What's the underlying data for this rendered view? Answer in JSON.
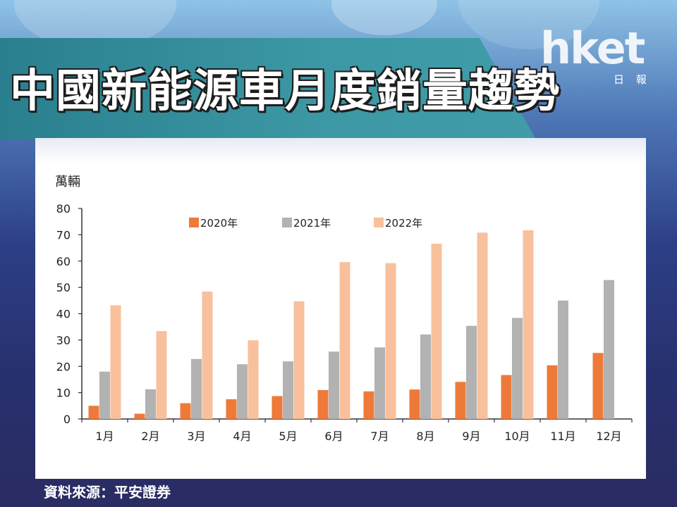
{
  "page_title": "中國新能源車月度銷量趨勢",
  "logo": {
    "wordmark": "hket",
    "subtitle": "日 報"
  },
  "source_note": "資料來源：平安證券",
  "chart_data": {
    "type": "bar",
    "ylabel": "萬輛",
    "ylim": [
      0,
      80
    ],
    "yticks": [
      0,
      10,
      20,
      30,
      40,
      50,
      60,
      70,
      80
    ],
    "categories": [
      "1月",
      "2月",
      "3月",
      "4月",
      "5月",
      "6月",
      "7月",
      "8月",
      "9月",
      "10月",
      "11月",
      "12月"
    ],
    "series": [
      {
        "name": "2020年",
        "color": "#ee7a3a",
        "values": [
          5,
          2,
          6,
          7.5,
          8.7,
          11,
          10.5,
          11.2,
          14.1,
          16.7,
          20.4,
          25.1
        ]
      },
      {
        "name": "2021年",
        "color": "#b2b2b2",
        "values": [
          18,
          11.3,
          22.8,
          20.8,
          21.9,
          25.6,
          27.2,
          32.1,
          35.4,
          38.4,
          45,
          52.8
        ]
      },
      {
        "name": "2022年",
        "color": "#f8c09c",
        "values": [
          43.2,
          33.4,
          48.4,
          29.9,
          44.7,
          59.6,
          59.2,
          66.6,
          70.8,
          71.7,
          null,
          null
        ]
      }
    ],
    "legend_position": "top",
    "grid": false
  }
}
